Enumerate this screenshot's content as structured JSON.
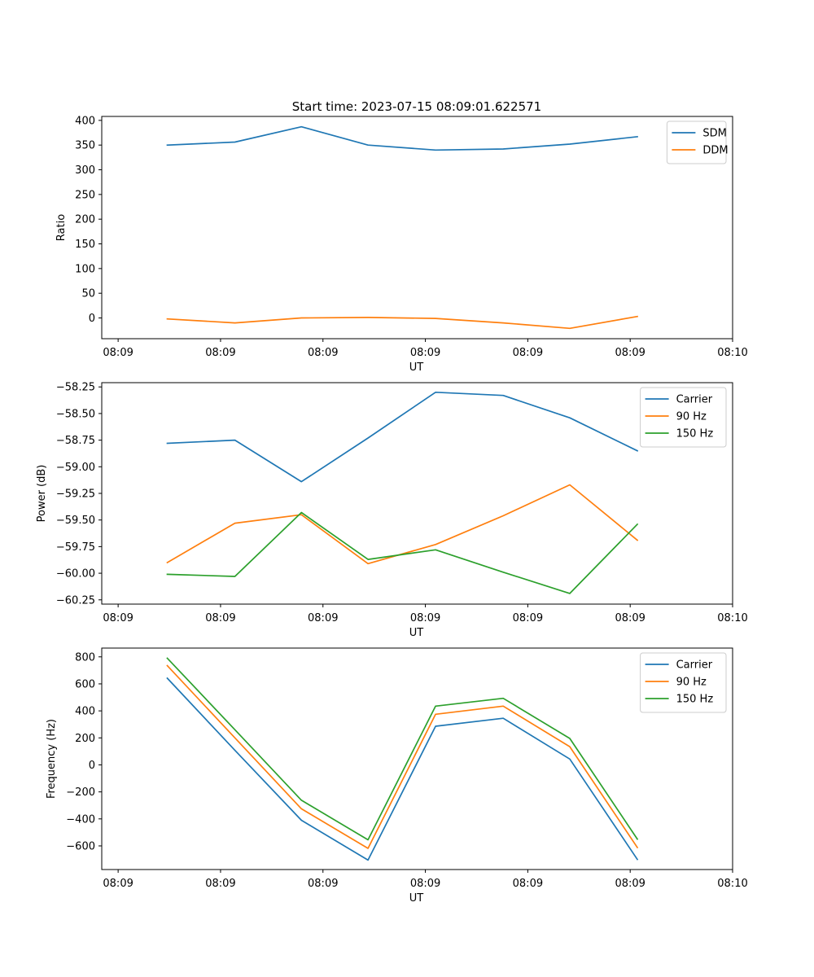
{
  "figure": {
    "title": "Start time: 2023-07-15 08:09:01.622571"
  },
  "colors": {
    "c0": "#1f77b4",
    "c1": "#ff7f0e",
    "c2": "#2ca02c",
    "axis": "#000000",
    "legend_border": "#cccccc"
  },
  "chart_data": [
    {
      "type": "line",
      "title": "Start time: 2023-07-15 08:09:01.622571",
      "xlabel": "UT",
      "ylabel": "Ratio",
      "x_tick_labels": [
        "08:09",
        "08:09",
        "08:09",
        "08:09",
        "08:09",
        "08:09",
        "08:10"
      ],
      "x_ticks": [
        0,
        1,
        2,
        3,
        4,
        5,
        6
      ],
      "xlim": [
        -0.16,
        6.0
      ],
      "ylim": [
        -42,
        408
      ],
      "y_ticks": [
        0,
        50,
        100,
        150,
        200,
        250,
        300,
        350,
        400
      ],
      "y_tick_labels": [
        "0",
        "50",
        "100",
        "150",
        "200",
        "250",
        "300",
        "350",
        "400"
      ],
      "legend_location": "upper right",
      "x": [
        0.48,
        1.14,
        1.79,
        2.44,
        3.1,
        3.76,
        4.41,
        5.07
      ],
      "series": [
        {
          "name": "SDM",
          "color_key": "c0",
          "values": [
            350,
            356,
            387,
            350,
            340,
            342,
            352,
            367
          ]
        },
        {
          "name": "DDM",
          "color_key": "c1",
          "values": [
            -2,
            -10,
            0,
            1,
            -1,
            -10,
            -21,
            3
          ]
        }
      ]
    },
    {
      "type": "line",
      "title": "",
      "xlabel": "UT",
      "ylabel": "Power (dB)",
      "x_tick_labels": [
        "08:09",
        "08:09",
        "08:09",
        "08:09",
        "08:09",
        "08:09",
        "08:10"
      ],
      "x_ticks": [
        0,
        1,
        2,
        3,
        4,
        5,
        6
      ],
      "xlim": [
        -0.16,
        6.0
      ],
      "ylim": [
        -60.29,
        -58.21
      ],
      "y_ticks": [
        -60.25,
        -60.0,
        -59.75,
        -59.5,
        -59.25,
        -59.0,
        -58.75,
        -58.5,
        -58.25
      ],
      "y_tick_labels": [
        "−60.25",
        "−60.00",
        "−59.75",
        "−59.50",
        "−59.25",
        "−59.00",
        "−58.75",
        "−58.50",
        "−58.25"
      ],
      "legend_location": "upper right",
      "x": [
        0.48,
        1.14,
        1.79,
        2.44,
        3.1,
        3.76,
        4.41,
        5.07
      ],
      "series": [
        {
          "name": "Carrier",
          "color_key": "c0",
          "values": [
            -58.78,
            -58.75,
            -59.14,
            -58.73,
            -58.3,
            -58.33,
            -58.54,
            -58.85
          ]
        },
        {
          "name": "90 Hz",
          "color_key": "c1",
          "values": [
            -59.9,
            -59.53,
            -59.45,
            -59.91,
            -59.73,
            -59.46,
            -59.17,
            -59.69
          ]
        },
        {
          "name": "150 Hz",
          "color_key": "c2",
          "values": [
            -60.01,
            -60.03,
            -59.43,
            -59.87,
            -59.78,
            -59.99,
            -60.19,
            -59.54
          ]
        }
      ]
    },
    {
      "type": "line",
      "title": "",
      "xlabel": "UT",
      "ylabel": "Frequency (Hz)",
      "x_tick_labels": [
        "08:09",
        "08:09",
        "08:09",
        "08:09",
        "08:09",
        "08:09",
        "08:10"
      ],
      "x_ticks": [
        0,
        1,
        2,
        3,
        4,
        5,
        6
      ],
      "xlim": [
        -0.16,
        6.0
      ],
      "ylim": [
        -775,
        865
      ],
      "y_ticks": [
        -600,
        -400,
        -200,
        0,
        200,
        400,
        600,
        800
      ],
      "y_tick_labels": [
        "−600",
        "−400",
        "−200",
        "0",
        "200",
        "400",
        "600",
        "800"
      ],
      "legend_location": "upper right",
      "x": [
        0.48,
        1.14,
        1.79,
        2.44,
        3.1,
        3.76,
        4.41,
        5.07
      ],
      "series": [
        {
          "name": "Carrier",
          "color_key": "c0",
          "values": [
            642,
            108,
            -410,
            -705,
            286,
            345,
            43,
            -700
          ]
        },
        {
          "name": "90 Hz",
          "color_key": "c1",
          "values": [
            735,
            200,
            -325,
            -618,
            375,
            435,
            135,
            -612
          ]
        },
        {
          "name": "150 Hz",
          "color_key": "c2",
          "values": [
            790,
            260,
            -262,
            -555,
            435,
            493,
            196,
            -550
          ]
        }
      ]
    }
  ]
}
